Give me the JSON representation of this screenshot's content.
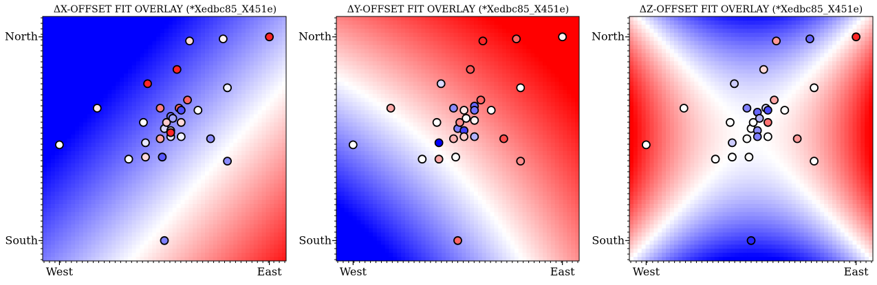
{
  "figure": {
    "background": "#ffffff"
  },
  "colormap": {
    "name": "bwr",
    "low": "#0000ff",
    "mid": "#ffffff",
    "high": "#ff0000"
  },
  "chart_data": [
    {
      "type": "scatter",
      "overlay": "heatmap",
      "title": "ΔX-OFFSET FIT OVERLAY (*Xedbc85_X451e)",
      "xlabel": "",
      "ylabel": "",
      "xlim": [
        -0.08,
        1.08
      ],
      "ylim": [
        -0.1,
        1.1
      ],
      "xticks": [
        {
          "value": 0,
          "label": "West"
        },
        {
          "value": 1,
          "label": "East"
        }
      ],
      "yticks": [
        {
          "value": 0,
          "label": "South"
        },
        {
          "value": 1,
          "label": "North"
        }
      ],
      "grid": false,
      "field": {
        "kind": "linear",
        "a": 1.3,
        "b": -1.1,
        "c": -0.55,
        "quad": 0,
        "scale": 0.95
      },
      "points": [
        {
          "x": 0.0,
          "y": 0.47,
          "v": 0.0
        },
        {
          "x": 0.18,
          "y": 0.65,
          "v": 0.1
        },
        {
          "x": 0.33,
          "y": 0.4,
          "v": 0.0
        },
        {
          "x": 0.4,
          "y": 0.58,
          "v": 0.0
        },
        {
          "x": 0.41,
          "y": 0.48,
          "v": -0.1
        },
        {
          "x": 0.41,
          "y": 0.41,
          "v": 0.15
        },
        {
          "x": 0.42,
          "y": 0.77,
          "v": 0.85
        },
        {
          "x": 0.48,
          "y": 0.65,
          "v": 0.5
        },
        {
          "x": 0.48,
          "y": 0.5,
          "v": 0.35
        },
        {
          "x": 0.49,
          "y": 0.41,
          "v": -0.65
        },
        {
          "x": 0.5,
          "y": 0.55,
          "v": -0.15
        },
        {
          "x": 0.5,
          "y": 0.0,
          "v": -0.5
        },
        {
          "x": 0.51,
          "y": 0.58,
          "v": 0.2
        },
        {
          "x": 0.53,
          "y": 0.61,
          "v": -0.55
        },
        {
          "x": 0.53,
          "y": 0.54,
          "v": 0.1
        },
        {
          "x": 0.53,
          "y": 0.51,
          "v": -0.1
        },
        {
          "x": 0.53,
          "y": 0.53,
          "v": 0.85
        },
        {
          "x": 0.54,
          "y": 0.6,
          "v": -0.35
        },
        {
          "x": 0.56,
          "y": 0.84,
          "v": 0.85
        },
        {
          "x": 0.57,
          "y": 0.65,
          "v": 0.6
        },
        {
          "x": 0.58,
          "y": 0.58,
          "v": 0.15
        },
        {
          "x": 0.58,
          "y": 0.51,
          "v": -0.05
        },
        {
          "x": 0.58,
          "y": 0.64,
          "v": -0.7
        },
        {
          "x": 0.61,
          "y": 0.69,
          "v": 0.6
        },
        {
          "x": 0.62,
          "y": 0.98,
          "v": 0.15
        },
        {
          "x": 0.66,
          "y": 0.64,
          "v": 0.0
        },
        {
          "x": 0.72,
          "y": 0.5,
          "v": -0.45
        },
        {
          "x": 0.78,
          "y": 0.99,
          "v": 0.05
        },
        {
          "x": 0.8,
          "y": 0.75,
          "v": -0.05
        },
        {
          "x": 0.8,
          "y": 0.39,
          "v": -0.45
        },
        {
          "x": 1.0,
          "y": 1.0,
          "v": 0.85
        }
      ]
    },
    {
      "type": "scatter",
      "overlay": "heatmap",
      "title": "ΔY-OFFSET FIT OVERLAY (*Xedbc85_X451e)",
      "xlabel": "",
      "ylabel": "",
      "xlim": [
        -0.08,
        1.08
      ],
      "ylim": [
        -0.1,
        1.1
      ],
      "xticks": [
        {
          "value": 0,
          "label": "West"
        },
        {
          "value": 1,
          "label": "East"
        }
      ],
      "yticks": [
        {
          "value": 0,
          "label": "South"
        },
        {
          "value": 1,
          "label": "North"
        }
      ],
      "grid": false,
      "field": {
        "kind": "linear",
        "a": 0.9,
        "b": 0.9,
        "c": -0.75,
        "quad": 0.6,
        "scale": 1.3
      },
      "points": [
        {
          "x": 0.0,
          "y": 0.47,
          "v": 0.0
        },
        {
          "x": 0.18,
          "y": 0.65,
          "v": 0.35
        },
        {
          "x": 0.33,
          "y": 0.4,
          "v": 0.0
        },
        {
          "x": 0.4,
          "y": 0.58,
          "v": 0.0
        },
        {
          "x": 0.41,
          "y": 0.48,
          "v": -1.0
        },
        {
          "x": 0.41,
          "y": 0.4,
          "v": 0.35
        },
        {
          "x": 0.42,
          "y": 0.77,
          "v": -0.15
        },
        {
          "x": 0.48,
          "y": 0.65,
          "v": -0.45
        },
        {
          "x": 0.48,
          "y": 0.5,
          "v": 0.3
        },
        {
          "x": 0.49,
          "y": 0.41,
          "v": 0.0
        },
        {
          "x": 0.5,
          "y": 0.55,
          "v": -0.5
        },
        {
          "x": 0.5,
          "y": 0.0,
          "v": 0.6
        },
        {
          "x": 0.51,
          "y": 0.58,
          "v": 0.45
        },
        {
          "x": 0.53,
          "y": 0.54,
          "v": -0.75
        },
        {
          "x": 0.53,
          "y": 0.51,
          "v": 0.2
        },
        {
          "x": 0.53,
          "y": 0.64,
          "v": 0.1
        },
        {
          "x": 0.54,
          "y": 0.6,
          "v": 0.0
        },
        {
          "x": 0.56,
          "y": 0.84,
          "v": 0.65
        },
        {
          "x": 0.58,
          "y": 0.66,
          "v": -0.6
        },
        {
          "x": 0.58,
          "y": 0.64,
          "v": -0.55
        },
        {
          "x": 0.58,
          "y": 0.51,
          "v": -0.3
        },
        {
          "x": 0.58,
          "y": 0.59,
          "v": 0.05
        },
        {
          "x": 0.61,
          "y": 0.69,
          "v": 0.6
        },
        {
          "x": 0.62,
          "y": 0.98,
          "v": 0.85
        },
        {
          "x": 0.66,
          "y": 0.64,
          "v": 0.0
        },
        {
          "x": 0.72,
          "y": 0.5,
          "v": 0.7
        },
        {
          "x": 0.78,
          "y": 0.99,
          "v": 0.6
        },
        {
          "x": 0.8,
          "y": 0.75,
          "v": 0.0
        },
        {
          "x": 0.8,
          "y": 0.39,
          "v": 0.45
        },
        {
          "x": 1.0,
          "y": 1.0,
          "v": 0.05
        }
      ]
    },
    {
      "type": "scatter",
      "overlay": "heatmap",
      "title": "ΔZ-OFFSET FIT OVERLAY (*Xedbc85_X451e)",
      "xlabel": "",
      "ylabel": "",
      "xlim": [
        -0.08,
        1.08
      ],
      "ylim": [
        -0.1,
        1.1
      ],
      "xticks": [
        {
          "value": 0,
          "label": "West"
        },
        {
          "value": 1,
          "label": "East"
        }
      ],
      "yticks": [
        {
          "value": 0,
          "label": "South"
        },
        {
          "value": 1,
          "label": "North"
        }
      ],
      "grid": false,
      "field": {
        "kind": "saddle",
        "ax": 3.2,
        "by": 2.8,
        "cx": 0.5,
        "cy": 0.52,
        "scale": 1.0
      },
      "points": [
        {
          "x": 0.0,
          "y": 0.47,
          "v": 0.0
        },
        {
          "x": 0.18,
          "y": 0.65,
          "v": 0.0
        },
        {
          "x": 0.33,
          "y": 0.4,
          "v": 0.0
        },
        {
          "x": 0.4,
          "y": 0.58,
          "v": 0.0
        },
        {
          "x": 0.41,
          "y": 0.48,
          "v": -0.2
        },
        {
          "x": 0.41,
          "y": 0.41,
          "v": 0.0
        },
        {
          "x": 0.42,
          "y": 0.77,
          "v": -0.2
        },
        {
          "x": 0.48,
          "y": 0.65,
          "v": -0.5
        },
        {
          "x": 0.48,
          "y": 0.5,
          "v": 0.0
        },
        {
          "x": 0.49,
          "y": 0.41,
          "v": 0.0
        },
        {
          "x": 0.5,
          "y": 0.55,
          "v": 0.0
        },
        {
          "x": 0.5,
          "y": 0.0,
          "v": -0.85
        },
        {
          "x": 0.51,
          "y": 0.58,
          "v": 0.0
        },
        {
          "x": 0.53,
          "y": 0.54,
          "v": -0.45
        },
        {
          "x": 0.53,
          "y": 0.51,
          "v": -0.5
        },
        {
          "x": 0.53,
          "y": 0.63,
          "v": -0.6
        },
        {
          "x": 0.54,
          "y": 0.6,
          "v": -0.3
        },
        {
          "x": 0.56,
          "y": 0.84,
          "v": 0.15
        },
        {
          "x": 0.57,
          "y": 0.65,
          "v": -0.15
        },
        {
          "x": 0.58,
          "y": 0.58,
          "v": 0.55
        },
        {
          "x": 0.58,
          "y": 0.64,
          "v": -0.7
        },
        {
          "x": 0.58,
          "y": 0.51,
          "v": 0.0
        },
        {
          "x": 0.61,
          "y": 0.69,
          "v": 0.35
        },
        {
          "x": 0.62,
          "y": 0.98,
          "v": 0.4
        },
        {
          "x": 0.66,
          "y": 0.64,
          "v": 0.0
        },
        {
          "x": 0.72,
          "y": 0.5,
          "v": 0.4
        },
        {
          "x": 0.78,
          "y": 0.99,
          "v": -0.6
        },
        {
          "x": 0.8,
          "y": 0.75,
          "v": 0.0
        },
        {
          "x": 0.8,
          "y": 0.39,
          "v": 0.0
        },
        {
          "x": 1.0,
          "y": 1.0,
          "v": 0.85
        }
      ]
    }
  ]
}
